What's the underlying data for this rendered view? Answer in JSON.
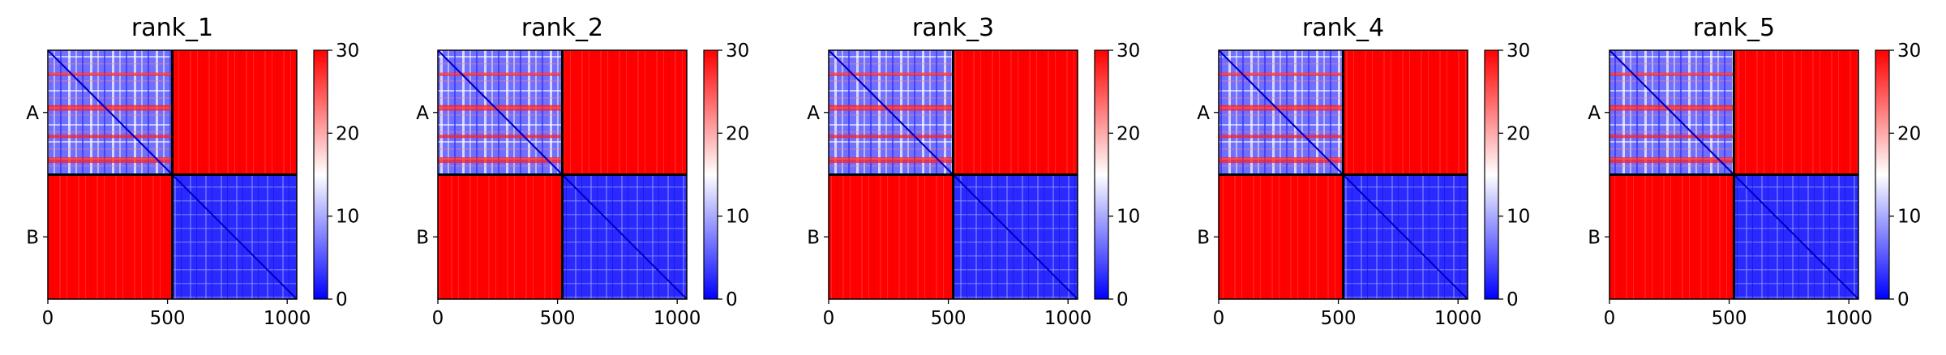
{
  "chart_data": [
    {
      "type": "heatmap",
      "title": "rank_1",
      "x_ticks": [
        "0",
        "500",
        "1000"
      ],
      "x_tick_values": [
        0,
        500,
        1000
      ],
      "xlim": [
        0,
        1040
      ],
      "y_ticks": [
        "A",
        "B"
      ],
      "segments": [
        {
          "name": "A",
          "range": [
            0,
            520
          ]
        },
        {
          "name": "B",
          "range": [
            520,
            1040
          ]
        }
      ],
      "colorbar": {
        "ticks": [
          "0",
          "10",
          "20",
          "30"
        ],
        "tick_values": [
          0,
          10,
          20,
          30
        ],
        "range": [
          0,
          30
        ],
        "colormap": "bwr"
      }
    },
    {
      "type": "heatmap",
      "title": "rank_2",
      "x_ticks": [
        "0",
        "500",
        "1000"
      ],
      "x_tick_values": [
        0,
        500,
        1000
      ],
      "xlim": [
        0,
        1040
      ],
      "y_ticks": [
        "A",
        "B"
      ],
      "segments": [
        {
          "name": "A",
          "range": [
            0,
            520
          ]
        },
        {
          "name": "B",
          "range": [
            520,
            1040
          ]
        }
      ],
      "colorbar": {
        "ticks": [
          "0",
          "10",
          "20",
          "30"
        ],
        "tick_values": [
          0,
          10,
          20,
          30
        ],
        "range": [
          0,
          30
        ],
        "colormap": "bwr"
      }
    },
    {
      "type": "heatmap",
      "title": "rank_3",
      "x_ticks": [
        "0",
        "500",
        "1000"
      ],
      "x_tick_values": [
        0,
        500,
        1000
      ],
      "xlim": [
        0,
        1040
      ],
      "y_ticks": [
        "A",
        "B"
      ],
      "segments": [
        {
          "name": "A",
          "range": [
            0,
            520
          ]
        },
        {
          "name": "B",
          "range": [
            520,
            1040
          ]
        }
      ],
      "colorbar": {
        "ticks": [
          "0",
          "10",
          "20",
          "30"
        ],
        "tick_values": [
          0,
          10,
          20,
          30
        ],
        "range": [
          0,
          30
        ],
        "colormap": "bwr"
      }
    },
    {
      "type": "heatmap",
      "title": "rank_4",
      "x_ticks": [
        "0",
        "500",
        "1000"
      ],
      "x_tick_values": [
        0,
        500,
        1000
      ],
      "xlim": [
        0,
        1040
      ],
      "y_ticks": [
        "A",
        "B"
      ],
      "segments": [
        {
          "name": "A",
          "range": [
            0,
            520
          ]
        },
        {
          "name": "B",
          "range": [
            520,
            1040
          ]
        }
      ],
      "colorbar": {
        "ticks": [
          "0",
          "10",
          "20",
          "30"
        ],
        "tick_values": [
          0,
          10,
          20,
          30
        ],
        "range": [
          0,
          30
        ],
        "colormap": "bwr"
      }
    },
    {
      "type": "heatmap",
      "title": "rank_5",
      "x_ticks": [
        "0",
        "500",
        "1000"
      ],
      "x_tick_values": [
        0,
        500,
        1000
      ],
      "xlim": [
        0,
        1040
      ],
      "y_ticks": [
        "A",
        "B"
      ],
      "segments": [
        {
          "name": "A",
          "range": [
            0,
            520
          ]
        },
        {
          "name": "B",
          "range": [
            520,
            1040
          ]
        }
      ],
      "colorbar": {
        "ticks": [
          "0",
          "10",
          "20",
          "30"
        ],
        "tick_values": [
          0,
          10,
          20,
          30
        ],
        "range": [
          0,
          30
        ],
        "colormap": "bwr"
      }
    }
  ],
  "colors": {
    "high": "#ff0000",
    "mid": "#ffffff",
    "low": "#0000ff",
    "frame": "#000000"
  }
}
